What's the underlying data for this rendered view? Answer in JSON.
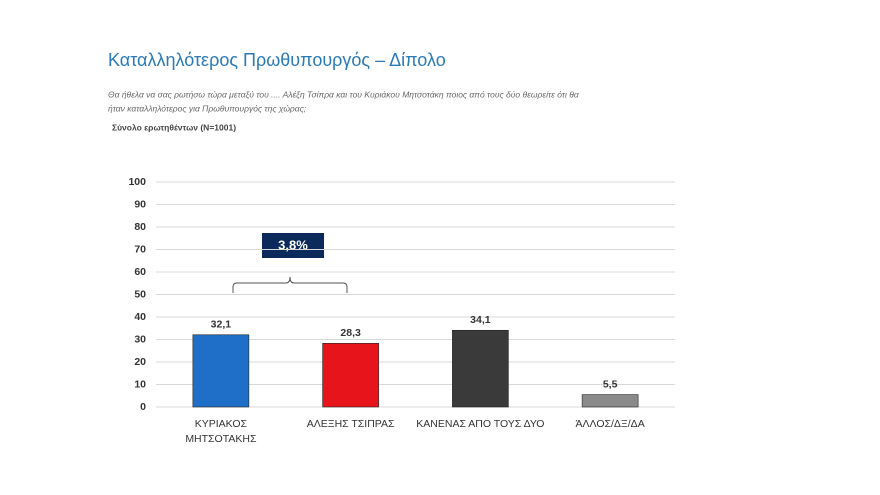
{
  "chart_data": {
    "type": "bar",
    "title": "Καταλληλότερος Πρωθυπουργός – Δίπολο",
    "subtitle": [
      "Θα ήθελα να σας ρωτήσω τώρα μεταξύ του .... Αλέξη Τσίπρα και του Κυριάκου Μητσοτάκη ποιος από τους δύο θεωρείτε ότι θα",
      "ήταν καταλληλότερος για Πρωθυπουργός της χώρας;"
    ],
    "note": "Σύνολο ερωτηθέντων (Ν=1001)",
    "annotation": "3,8%",
    "categories": [
      "ΚΥΡΙΑΚΟΣ ΜΗΤΣΟΤΑΚΗΣ",
      "ΑΛΕΞΗΣ ΤΣΙΠΡΑΣ",
      "ΚΑΝΕΝΑΣ ΑΠΟ ΤΟΥΣ ΔΥΟ",
      "ΆΛΛΟΣ/ΔΞ/ΔΑ"
    ],
    "values": [
      32.1,
      28.3,
      34.1,
      5.5
    ],
    "value_labels": [
      "32,1",
      "28,3",
      "34,1",
      "5,5"
    ],
    "colors": [
      "#1f6fc8",
      "#e8141c",
      "#3a3a3a",
      "#8a8a8a"
    ],
    "ylim": [
      0,
      100
    ],
    "yticks": [
      0,
      10,
      20,
      30,
      40,
      50,
      60,
      70,
      80,
      90,
      100
    ],
    "grid": true
  }
}
